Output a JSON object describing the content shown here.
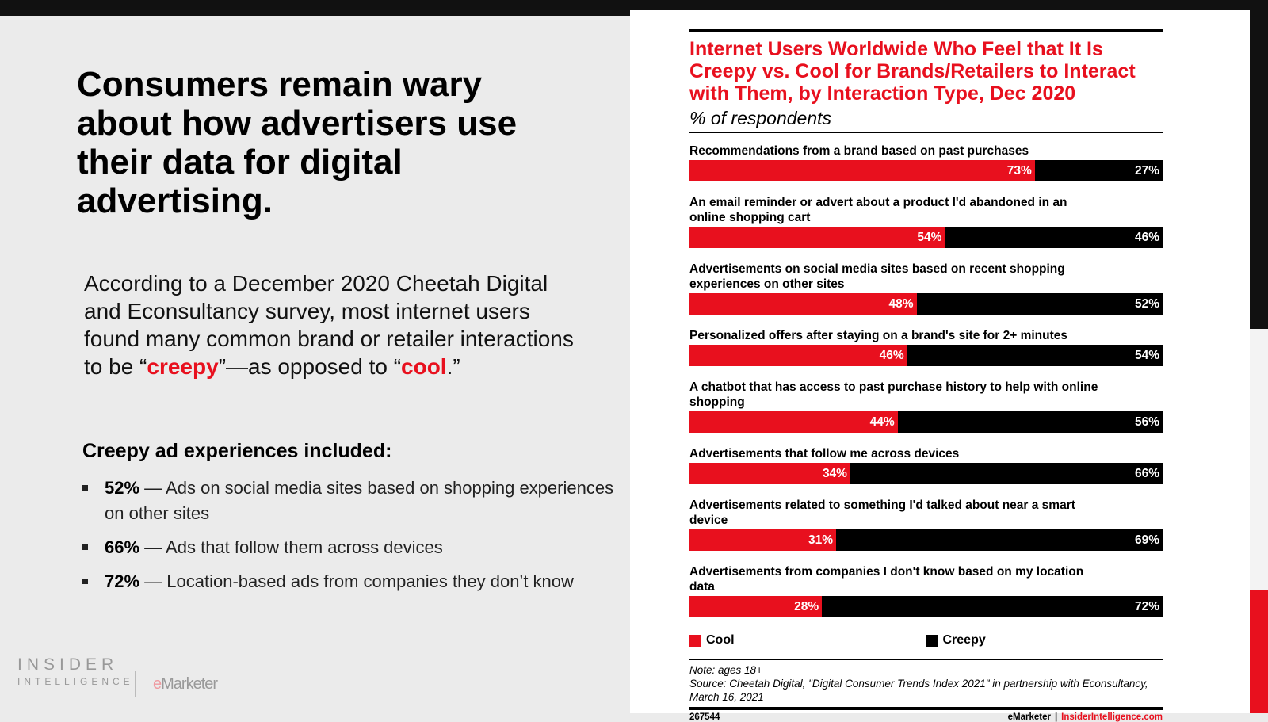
{
  "slide": {
    "headline": "Consumers remain wary about how advertisers use their data for digital advertising.",
    "body_before": "According to a December 2020 Cheetah Digital and Econsultancy survey, most internet users found many common brand or retailer interactions to be “",
    "body_creepy": "creepy",
    "body_middle": "”—as opposed to “",
    "body_cool": "cool",
    "body_after": ".”",
    "subhead": "Creepy ad experiences included:",
    "bullets": [
      {
        "pct": "52%",
        "text": " — Ads on social media sites based on shopping experiences on other sites"
      },
      {
        "pct": "66%",
        "text": " — Ads that follow them across devices"
      },
      {
        "pct": "72%",
        "text": " — Location-based ads from companies they don’t know"
      }
    ],
    "logo_line1": "INSIDER",
    "logo_line2": "INTELLIGENCE",
    "emarketer_e": "e",
    "emarketer_rest": "Marketer"
  },
  "colors": {
    "cool": "#e8101e",
    "creepy": "#000000",
    "accent": "#e8101e"
  },
  "chart_data": {
    "type": "bar",
    "orientation": "horizontal-stacked-100",
    "title": "Internet Users Worldwide Who Feel that It Is Creepy vs. Cool for Brands/Retailers to Interact with Them, by Interaction Type, Dec 2020",
    "subtitle": "% of respondents",
    "categories": [
      "Recommendations from a brand based on past purchases",
      "An email reminder or advert about a product I'd abandoned in an online shopping cart",
      "Advertisements on social media sites based on recent shopping experiences on other sites",
      "Personalized offers after staying on a brand's site for 2+ minutes",
      "A chatbot that has access to past purchase history to help with online shopping",
      "Advertisements  that follow me across devices",
      "Advertisements related to something I'd talked about near a smart device",
      "Advertisements from companies I don't know based on my location data"
    ],
    "series": [
      {
        "name": "Cool",
        "values": [
          73,
          54,
          48,
          46,
          44,
          34,
          31,
          28
        ]
      },
      {
        "name": "Creepy",
        "values": [
          27,
          46,
          52,
          54,
          56,
          66,
          69,
          72
        ]
      }
    ],
    "legend_position": "bottom",
    "note": "Note: ages 18+",
    "source": "Source: Cheetah Digital, \"Digital Consumer Trends Index 2021\" in partnership with Econsultancy, March 16, 2021",
    "chart_id": "267544",
    "footer_brand": "eMarketer",
    "footer_sep": "|",
    "footer_site": "InsiderIntelligence.com"
  }
}
